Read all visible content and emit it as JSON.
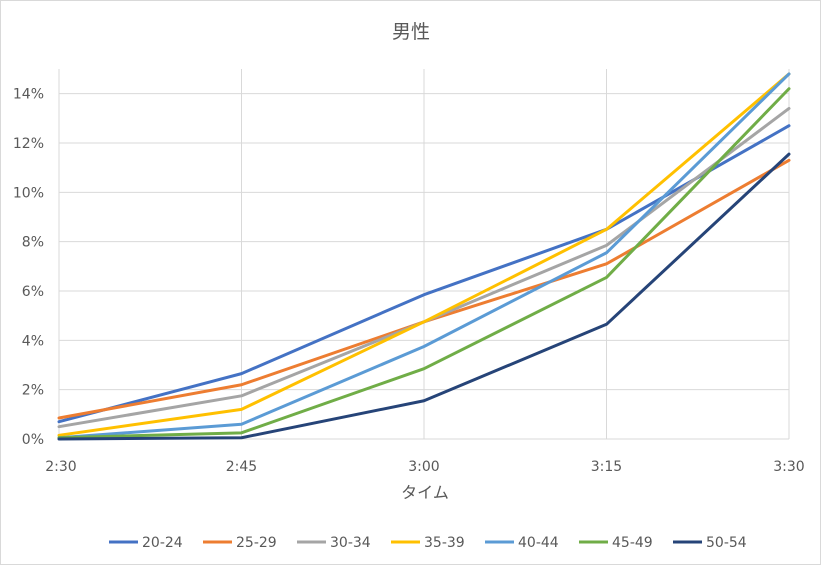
{
  "chart_data": {
    "type": "line",
    "title": "男性",
    "xlabel": "タイム",
    "ylabel": "",
    "categories": [
      "2:30",
      "2:45",
      "3:00",
      "3:15",
      "3:30"
    ],
    "y_ticks": [
      "0%",
      "2%",
      "4%",
      "6%",
      "8%",
      "10%",
      "12%",
      "14%"
    ],
    "ylim": [
      0,
      15
    ],
    "y_unit": "%",
    "grid": true,
    "legend_position": "bottom",
    "series": [
      {
        "name": "20-24",
        "color": "#4472c4",
        "values": [
          0.7,
          2.65,
          5.85,
          8.5,
          12.7
        ]
      },
      {
        "name": "25-29",
        "color": "#ed7d31",
        "values": [
          0.85,
          2.2,
          4.75,
          7.1,
          11.3
        ]
      },
      {
        "name": "30-34",
        "color": "#a5a5a5",
        "values": [
          0.5,
          1.75,
          4.75,
          7.85,
          13.4
        ]
      },
      {
        "name": "35-39",
        "color": "#ffc000",
        "values": [
          0.15,
          1.2,
          4.75,
          8.5,
          14.8
        ]
      },
      {
        "name": "40-44",
        "color": "#5b9bd5",
        "values": [
          0.05,
          0.6,
          3.75,
          7.55,
          14.8
        ]
      },
      {
        "name": "45-49",
        "color": "#70ad47",
        "values": [
          0.05,
          0.25,
          2.85,
          6.55,
          14.2
        ]
      },
      {
        "name": "50-54",
        "color": "#264478",
        "values": [
          0.0,
          0.05,
          1.55,
          4.65,
          11.55
        ]
      }
    ]
  }
}
